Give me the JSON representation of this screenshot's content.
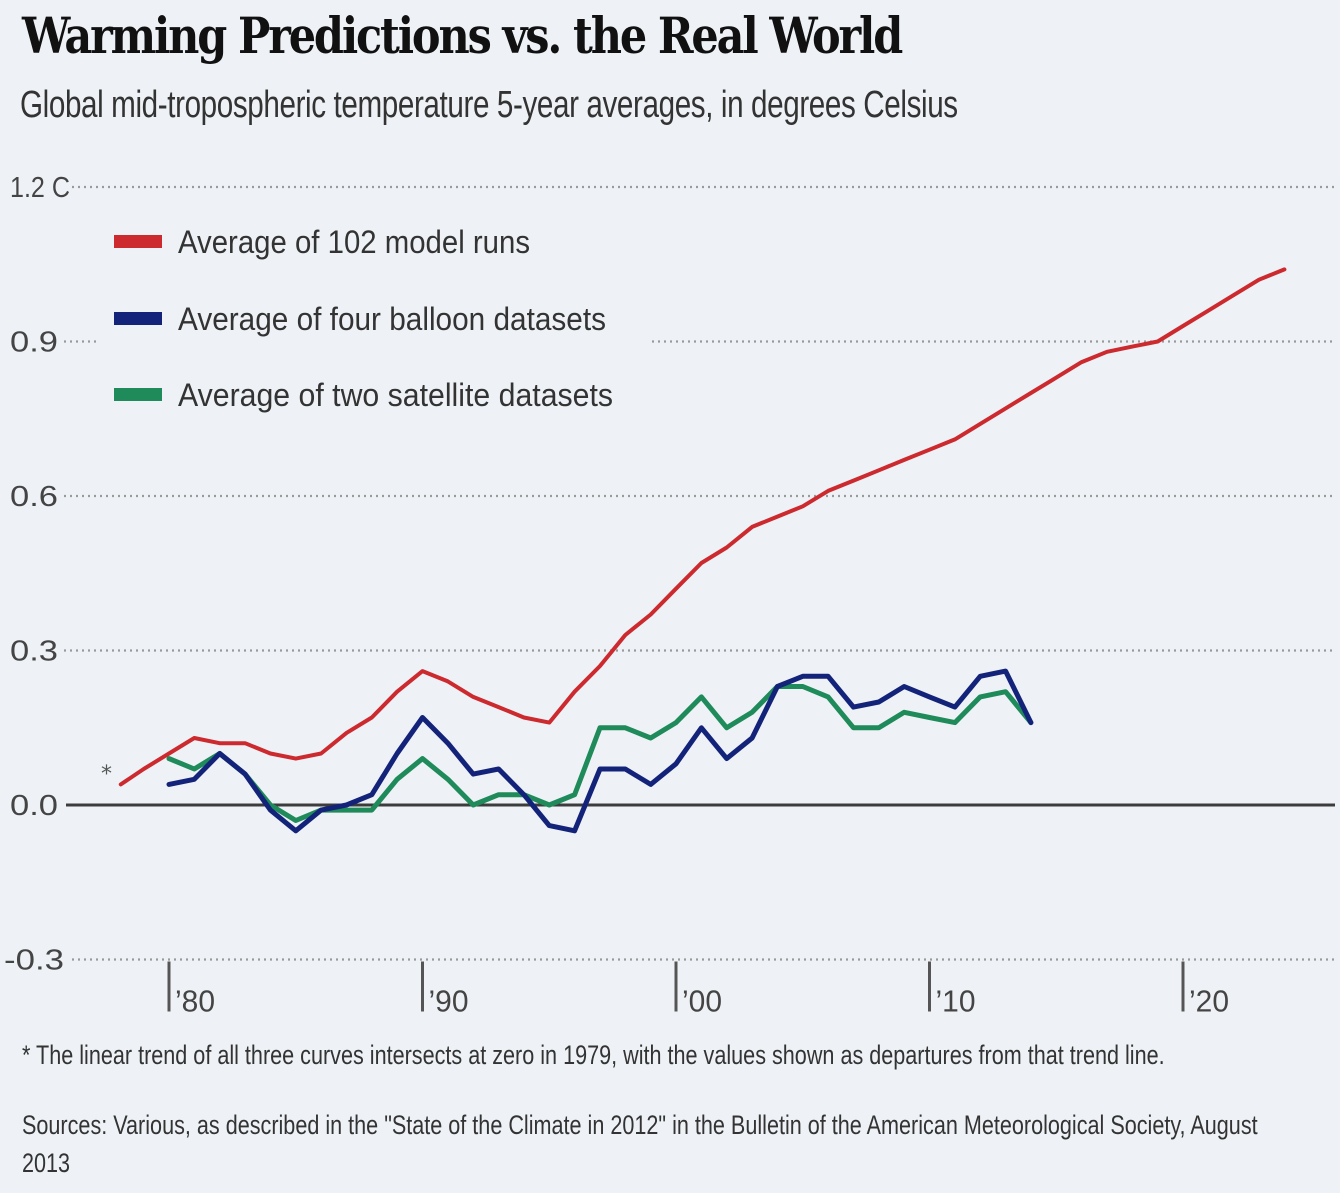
{
  "chart_data": {
    "type": "line",
    "title": "Warming Predictions vs. the Real World",
    "subtitle": "Global mid-tropospheric temperature 5-year averages, in degrees Celsius",
    "xlabel": "",
    "ylabel": "",
    "xlim": [
      1976,
      2025.5
    ],
    "ylim": [
      -0.3,
      1.2
    ],
    "grid": true,
    "legend_position": "top-left",
    "y_ticks": [
      {
        "value": 1.2,
        "label": "1.2 C"
      },
      {
        "value": 0.9,
        "label": "0.9"
      },
      {
        "value": 0.6,
        "label": "0.6"
      },
      {
        "value": 0.3,
        "label": "0.3"
      },
      {
        "value": 0.0,
        "label": "0.0"
      },
      {
        "value": -0.3,
        "label": "-0.3"
      }
    ],
    "x_ticks": [
      {
        "value": 1980,
        "label": "’80"
      },
      {
        "value": 1990,
        "label": "’90"
      },
      {
        "value": 2000,
        "label": "’00"
      },
      {
        "value": 2010,
        "label": "’10"
      },
      {
        "value": 2020,
        "label": "’20"
      }
    ],
    "series": [
      {
        "name": "Average of 102 model runs",
        "color": "#cc2a2e",
        "x": [
          1978.1,
          1979,
          1980,
          1981,
          1982,
          1983,
          1984,
          1985,
          1986,
          1987,
          1988,
          1989,
          1990,
          1991,
          1992,
          1993,
          1994,
          1995,
          1996,
          1997,
          1998,
          1999,
          2000,
          2001,
          2002,
          2003,
          2004,
          2005,
          2006,
          2007,
          2008,
          2009,
          2010,
          2011,
          2012,
          2013,
          2014,
          2015,
          2016,
          2017,
          2018,
          2019,
          2020,
          2021,
          2022,
          2023,
          2024
        ],
        "values": [
          0.04,
          0.07,
          0.1,
          0.13,
          0.12,
          0.12,
          0.1,
          0.09,
          0.1,
          0.14,
          0.17,
          0.22,
          0.26,
          0.24,
          0.21,
          0.19,
          0.17,
          0.16,
          0.22,
          0.27,
          0.33,
          0.37,
          0.42,
          0.47,
          0.5,
          0.54,
          0.56,
          0.58,
          0.61,
          0.63,
          0.65,
          0.67,
          0.69,
          0.71,
          0.74,
          0.77,
          0.8,
          0.83,
          0.86,
          0.88,
          0.89,
          0.9,
          0.93,
          0.96,
          0.99,
          1.02,
          1.04
        ]
      },
      {
        "name": "Average of four balloon datasets",
        "color": "#14237a",
        "x": [
          1980,
          1981,
          1982,
          1983,
          1984,
          1985,
          1986,
          1987,
          1988,
          1989,
          1990,
          1991,
          1992,
          1993,
          1994,
          1995,
          1996,
          1997,
          1998,
          1999,
          2000,
          2001,
          2002,
          2003,
          2004,
          2005,
          2006,
          2007,
          2008,
          2009,
          2010,
          2011,
          2012,
          2013,
          2014
        ],
        "values": [
          0.04,
          0.05,
          0.1,
          0.06,
          -0.01,
          -0.05,
          -0.01,
          0.0,
          0.02,
          0.1,
          0.17,
          0.12,
          0.06,
          0.07,
          0.02,
          -0.04,
          -0.05,
          0.07,
          0.07,
          0.04,
          0.08,
          0.15,
          0.09,
          0.13,
          0.23,
          0.25,
          0.25,
          0.19,
          0.2,
          0.23,
          0.21,
          0.19,
          0.25,
          0.26,
          0.16
        ]
      },
      {
        "name": "Average of two satellite datasets",
        "color": "#1f8a5a",
        "x": [
          1980,
          1981,
          1982,
          1983,
          1984,
          1985,
          1986,
          1987,
          1988,
          1989,
          1990,
          1991,
          1992,
          1993,
          1994,
          1995,
          1996,
          1997,
          1998,
          1999,
          2000,
          2001,
          2002,
          2003,
          2004,
          2005,
          2006,
          2007,
          2008,
          2009,
          2010,
          2011,
          2012,
          2013,
          2014
        ],
        "values": [
          0.09,
          0.07,
          0.1,
          0.06,
          0.0,
          -0.03,
          -0.01,
          -0.01,
          -0.01,
          0.05,
          0.09,
          0.05,
          0.0,
          0.02,
          0.02,
          0.0,
          0.02,
          0.15,
          0.15,
          0.13,
          0.16,
          0.21,
          0.15,
          0.18,
          0.23,
          0.23,
          0.21,
          0.15,
          0.15,
          0.18,
          0.17,
          0.16,
          0.21,
          0.22,
          0.16
        ]
      }
    ],
    "annotations": [
      {
        "text": "*",
        "note": "marks 1979 zero-trend intersection"
      }
    ]
  },
  "header": {
    "title": "Warming Predictions vs. the Real World",
    "subtitle": "Global mid-tropospheric temperature 5-year averages, in degrees Celsius"
  },
  "legend": [
    {
      "label": "Average of 102 model runs",
      "color": "#cc2a2e"
    },
    {
      "label": "Average of four balloon datasets",
      "color": "#14237a"
    },
    {
      "label": "Average of two satellite datasets",
      "color": "#1f8a5a"
    }
  ],
  "asterisk": "*",
  "footer": {
    "footnote": "* The linear trend of all three curves intersects at zero in 1979, with the values shown as departures from that trend line.",
    "sources": "Sources: Various, as described in the \"State of the Climate in 2012\" in the Bulletin of the American Meteorological Society, August 2013"
  }
}
